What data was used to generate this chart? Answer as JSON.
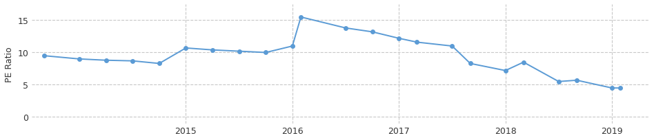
{
  "x_data": [
    2013.67,
    2014.0,
    2014.25,
    2014.5,
    2014.75,
    2015.0,
    2015.25,
    2015.5,
    2015.75,
    2016.0,
    2016.08,
    2016.5,
    2016.75,
    2017.0,
    2017.17,
    2017.5,
    2017.67,
    2018.0,
    2018.17,
    2018.5,
    2018.67,
    2019.0,
    2019.08
  ],
  "y_data": [
    9.5,
    9.0,
    8.8,
    8.7,
    8.3,
    10.7,
    10.4,
    10.2,
    10.0,
    11.0,
    15.5,
    13.8,
    13.2,
    12.2,
    11.6,
    11.0,
    8.3,
    7.2,
    8.5,
    5.5,
    5.7,
    4.5,
    4.5
  ],
  "line_color": "#5B9BD5",
  "marker_color": "#5B9BD5",
  "ylabel": "PE Ratio",
  "yticks": [
    0,
    5,
    10,
    15
  ],
  "xticks": [
    2015,
    2016,
    2017,
    2018,
    2019
  ],
  "xlim": [
    2013.55,
    2019.35
  ],
  "ylim": [
    -1.0,
    17.5
  ],
  "grid_color": "#c8c8c8",
  "bg_color": "#ffffff",
  "ylabel_fontsize": 9,
  "tick_fontsize": 9,
  "tick_color": "#333333"
}
